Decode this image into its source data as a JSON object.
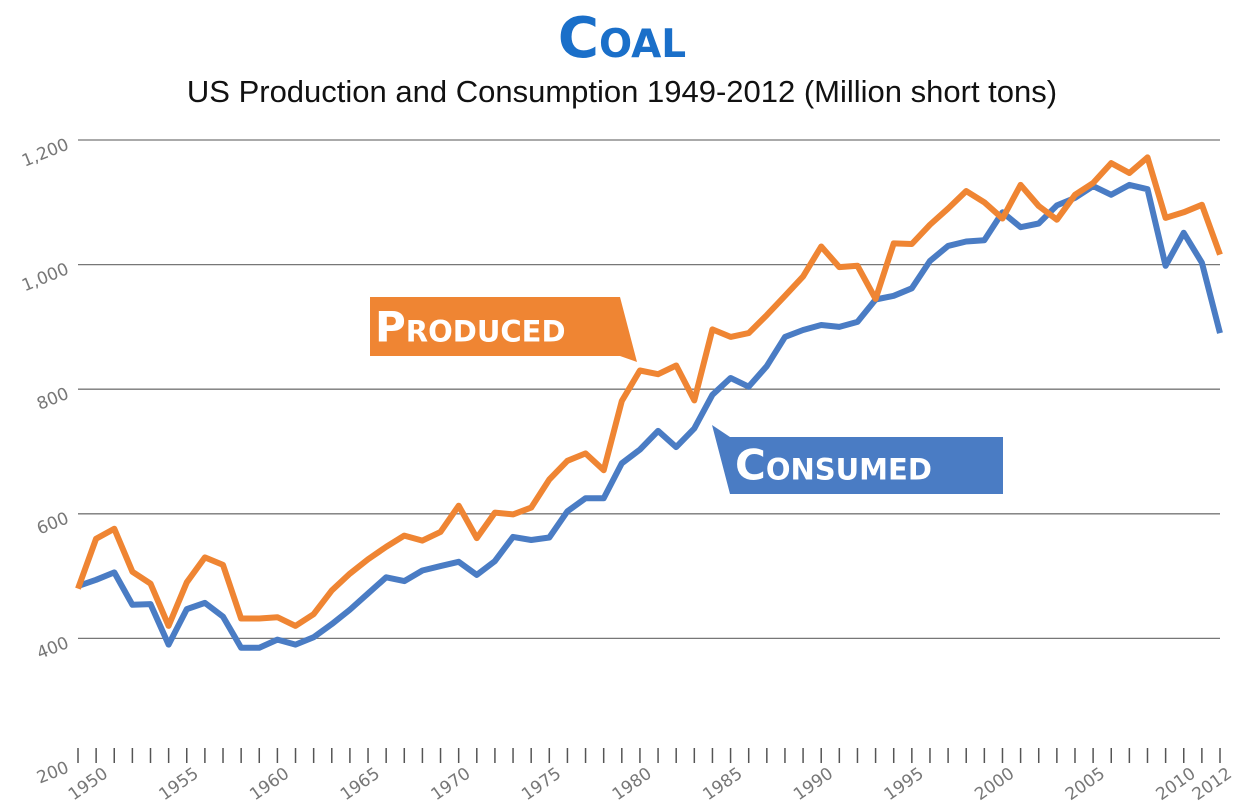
{
  "chart_data": {
    "type": "line",
    "title": "Coal",
    "subtitle": "US Production and Consumption 1949-2012 (Million short tons)",
    "x": [
      1949,
      1950,
      1951,
      1952,
      1953,
      1954,
      1955,
      1956,
      1957,
      1958,
      1959,
      1960,
      1961,
      1962,
      1963,
      1964,
      1965,
      1966,
      1967,
      1968,
      1969,
      1970,
      1971,
      1972,
      1973,
      1974,
      1975,
      1976,
      1977,
      1978,
      1979,
      1980,
      1981,
      1982,
      1983,
      1984,
      1985,
      1986,
      1987,
      1988,
      1989,
      1990,
      1991,
      1992,
      1993,
      1994,
      1995,
      1996,
      1997,
      1998,
      1999,
      2000,
      2001,
      2002,
      2003,
      2004,
      2005,
      2006,
      2007,
      2008,
      2009,
      2010,
      2011,
      2012
    ],
    "series": [
      {
        "name": "Produced",
        "color": "#ef8533",
        "values": [
          480,
          560,
          576,
          507,
          488,
          420,
          490,
          530,
          518,
          432,
          432,
          434,
          420,
          439,
          477,
          504,
          527,
          547,
          565,
          557,
          571,
          613,
          561,
          602,
          599,
          610,
          655,
          685,
          697,
          670,
          781,
          830,
          824,
          838,
          782,
          896,
          884,
          890,
          919,
          950,
          981,
          1029,
          996,
          998,
          945,
          1034,
          1033,
          1064,
          1090,
          1118,
          1100,
          1074,
          1128,
          1094,
          1072,
          1112,
          1131,
          1163,
          1147,
          1172,
          1075,
          1084,
          1096,
          1016
        ]
      },
      {
        "name": "Consumed",
        "color": "#4a7cc4",
        "values": [
          484,
          494,
          506,
          454,
          455,
          390,
          447,
          457,
          435,
          385,
          385,
          398,
          390,
          402,
          423,
          446,
          472,
          498,
          492,
          509,
          516,
          523,
          502,
          524,
          563,
          558,
          562,
          604,
          625,
          625,
          681,
          703,
          733,
          707,
          737,
          791,
          818,
          804,
          837,
          884,
          895,
          903,
          900,
          908,
          944,
          950,
          962,
          1006,
          1030,
          1037,
          1039,
          1084,
          1060,
          1066,
          1095,
          1107,
          1126,
          1112,
          1128,
          1121,
          998,
          1051,
          1003,
          890
        ]
      }
    ],
    "xlim": [
      1949,
      2012
    ],
    "xticks": [
      1950,
      1955,
      1960,
      1965,
      1970,
      1975,
      1980,
      1985,
      1990,
      1995,
      2000,
      2005,
      2010,
      2012
    ],
    "ylim": [
      200,
      1200
    ],
    "yticks": [
      200,
      400,
      600,
      800,
      {
        "value": 1000,
        "label": "1,000"
      },
      {
        "value": 1200,
        "label": "1,200"
      }
    ],
    "grid": true
  }
}
